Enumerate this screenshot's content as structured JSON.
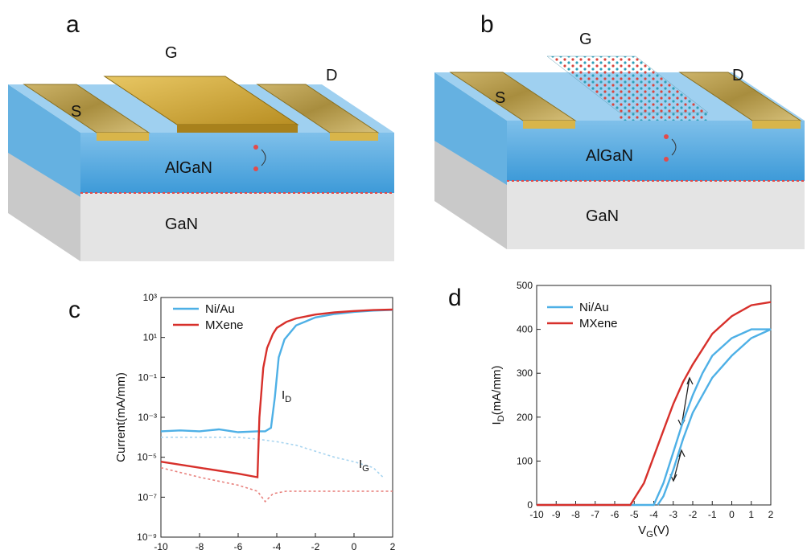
{
  "diagrams": [
    {
      "label": "a",
      "gate": "G",
      "source": "S",
      "drain": "D",
      "barrier": "AlGaN",
      "substrate": "GaN"
    },
    {
      "label": "b",
      "gate": "G",
      "source": "S",
      "drain": "D",
      "barrier": "AlGaN",
      "substrate": "GaN"
    }
  ],
  "chart_data": [
    {
      "type": "line",
      "label": "c",
      "ylabel": "Current(mA/mm)",
      "xlabel": [
        "V",
        "G",
        "(V)"
      ],
      "log_y": true,
      "legend": "upper left",
      "xlim": [
        -10,
        2
      ],
      "xticks": [
        -10,
        -8,
        -6,
        -4,
        -2,
        0,
        2
      ],
      "ylim": [
        1e-09,
        1000
      ],
      "yticks": [
        {
          "value": 1000,
          "label": "10³"
        },
        {
          "value": 10,
          "label": "10¹"
        },
        {
          "value": 0.1,
          "label": "10⁻¹"
        },
        {
          "value": 0.001,
          "label": "10⁻³"
        },
        {
          "value": 1e-05,
          "label": "10⁻⁵"
        },
        {
          "value": 1e-07,
          "label": "10⁻⁷"
        },
        {
          "value": 1e-09,
          "label": "10⁻⁹"
        }
      ],
      "series": [
        {
          "name": "Ni/Au",
          "color": "#4eb0e6",
          "x": [
            -10,
            -9,
            -8,
            -7,
            -6,
            -5,
            -4.6,
            -4.3,
            -4.1,
            -3.9,
            -3.6,
            -3,
            -2,
            -1,
            0,
            1,
            2
          ],
          "values": [
            0.0002,
            0.00022,
            0.0002,
            0.00025,
            0.00018,
            0.0002,
            0.0002,
            0.0003,
            0.01,
            1,
            8,
            40,
            100,
            150,
            190,
            220,
            240
          ]
        },
        {
          "name": "MXene",
          "color": "#d7302b",
          "x": [
            -10,
            -8,
            -6,
            -5,
            -4.9,
            -4.7,
            -4.5,
            -4.2,
            -4,
            -3.5,
            -3,
            -2,
            -1,
            0,
            1,
            2
          ],
          "values": [
            6e-06,
            3e-06,
            1.5e-06,
            1e-06,
            0.001,
            0.3,
            3,
            15,
            30,
            60,
            90,
            140,
            180,
            210,
            235,
            250
          ]
        }
      ],
      "gate_series": [
        {
          "color": "#a9d5f0",
          "x": [
            -10,
            -8,
            -6,
            -5,
            -4,
            -3,
            -2,
            -1,
            0,
            1,
            1.5
          ],
          "values": [
            0.0001,
            0.0001,
            0.0001,
            8e-05,
            6e-05,
            4e-05,
            2e-05,
            1e-05,
            6e-06,
            3e-06,
            1e-06
          ]
        },
        {
          "color": "#e8817d",
          "x": [
            -10,
            -8,
            -6,
            -5,
            -4.6,
            -4.2,
            -3.5,
            -2,
            0,
            2
          ],
          "values": [
            3e-06,
            1e-06,
            4e-07,
            2e-07,
            6e-08,
            1.5e-07,
            2e-07,
            2e-07,
            2e-07,
            2e-07
          ]
        }
      ],
      "annotations": [
        [
          "I",
          "D"
        ],
        [
          "I",
          "G"
        ]
      ]
    },
    {
      "type": "line",
      "label": "d",
      "ylabel": [
        "I",
        "D",
        "(mA/mm)"
      ],
      "xlabel": [
        "V",
        "G",
        "(V)"
      ],
      "legend": "upper left",
      "xlim": [
        -10,
        2
      ],
      "xticks": [
        -10,
        -9,
        -8,
        -7,
        -6,
        -5,
        -4,
        -3,
        -2,
        -1,
        0,
        1,
        2
      ],
      "ylim": [
        0,
        500
      ],
      "yticks": [
        0,
        100,
        200,
        300,
        400,
        500
      ],
      "series": [
        {
          "name": "Ni/Au",
          "color": "#4eb0e6",
          "x": [
            -10,
            -4,
            -3.5,
            -3,
            -2.5,
            -2,
            -1.5,
            -1,
            0,
            1,
            2,
            1,
            0,
            -1,
            -2,
            -2.5,
            -3,
            -3.5,
            -3.8
          ],
          "values": [
            0,
            0,
            50,
            120,
            190,
            250,
            300,
            340,
            380,
            400,
            400,
            380,
            340,
            290,
            210,
            150,
            80,
            20,
            0
          ]
        },
        {
          "name": "MXene",
          "color": "#d7302b",
          "x": [
            -10,
            -5.2,
            -4.5,
            -4,
            -3.5,
            -3,
            -2.5,
            -2,
            -1,
            0,
            1,
            2
          ],
          "values": [
            0,
            0,
            50,
            110,
            170,
            230,
            280,
            320,
            390,
            430,
            455,
            462
          ]
        }
      ]
    }
  ]
}
